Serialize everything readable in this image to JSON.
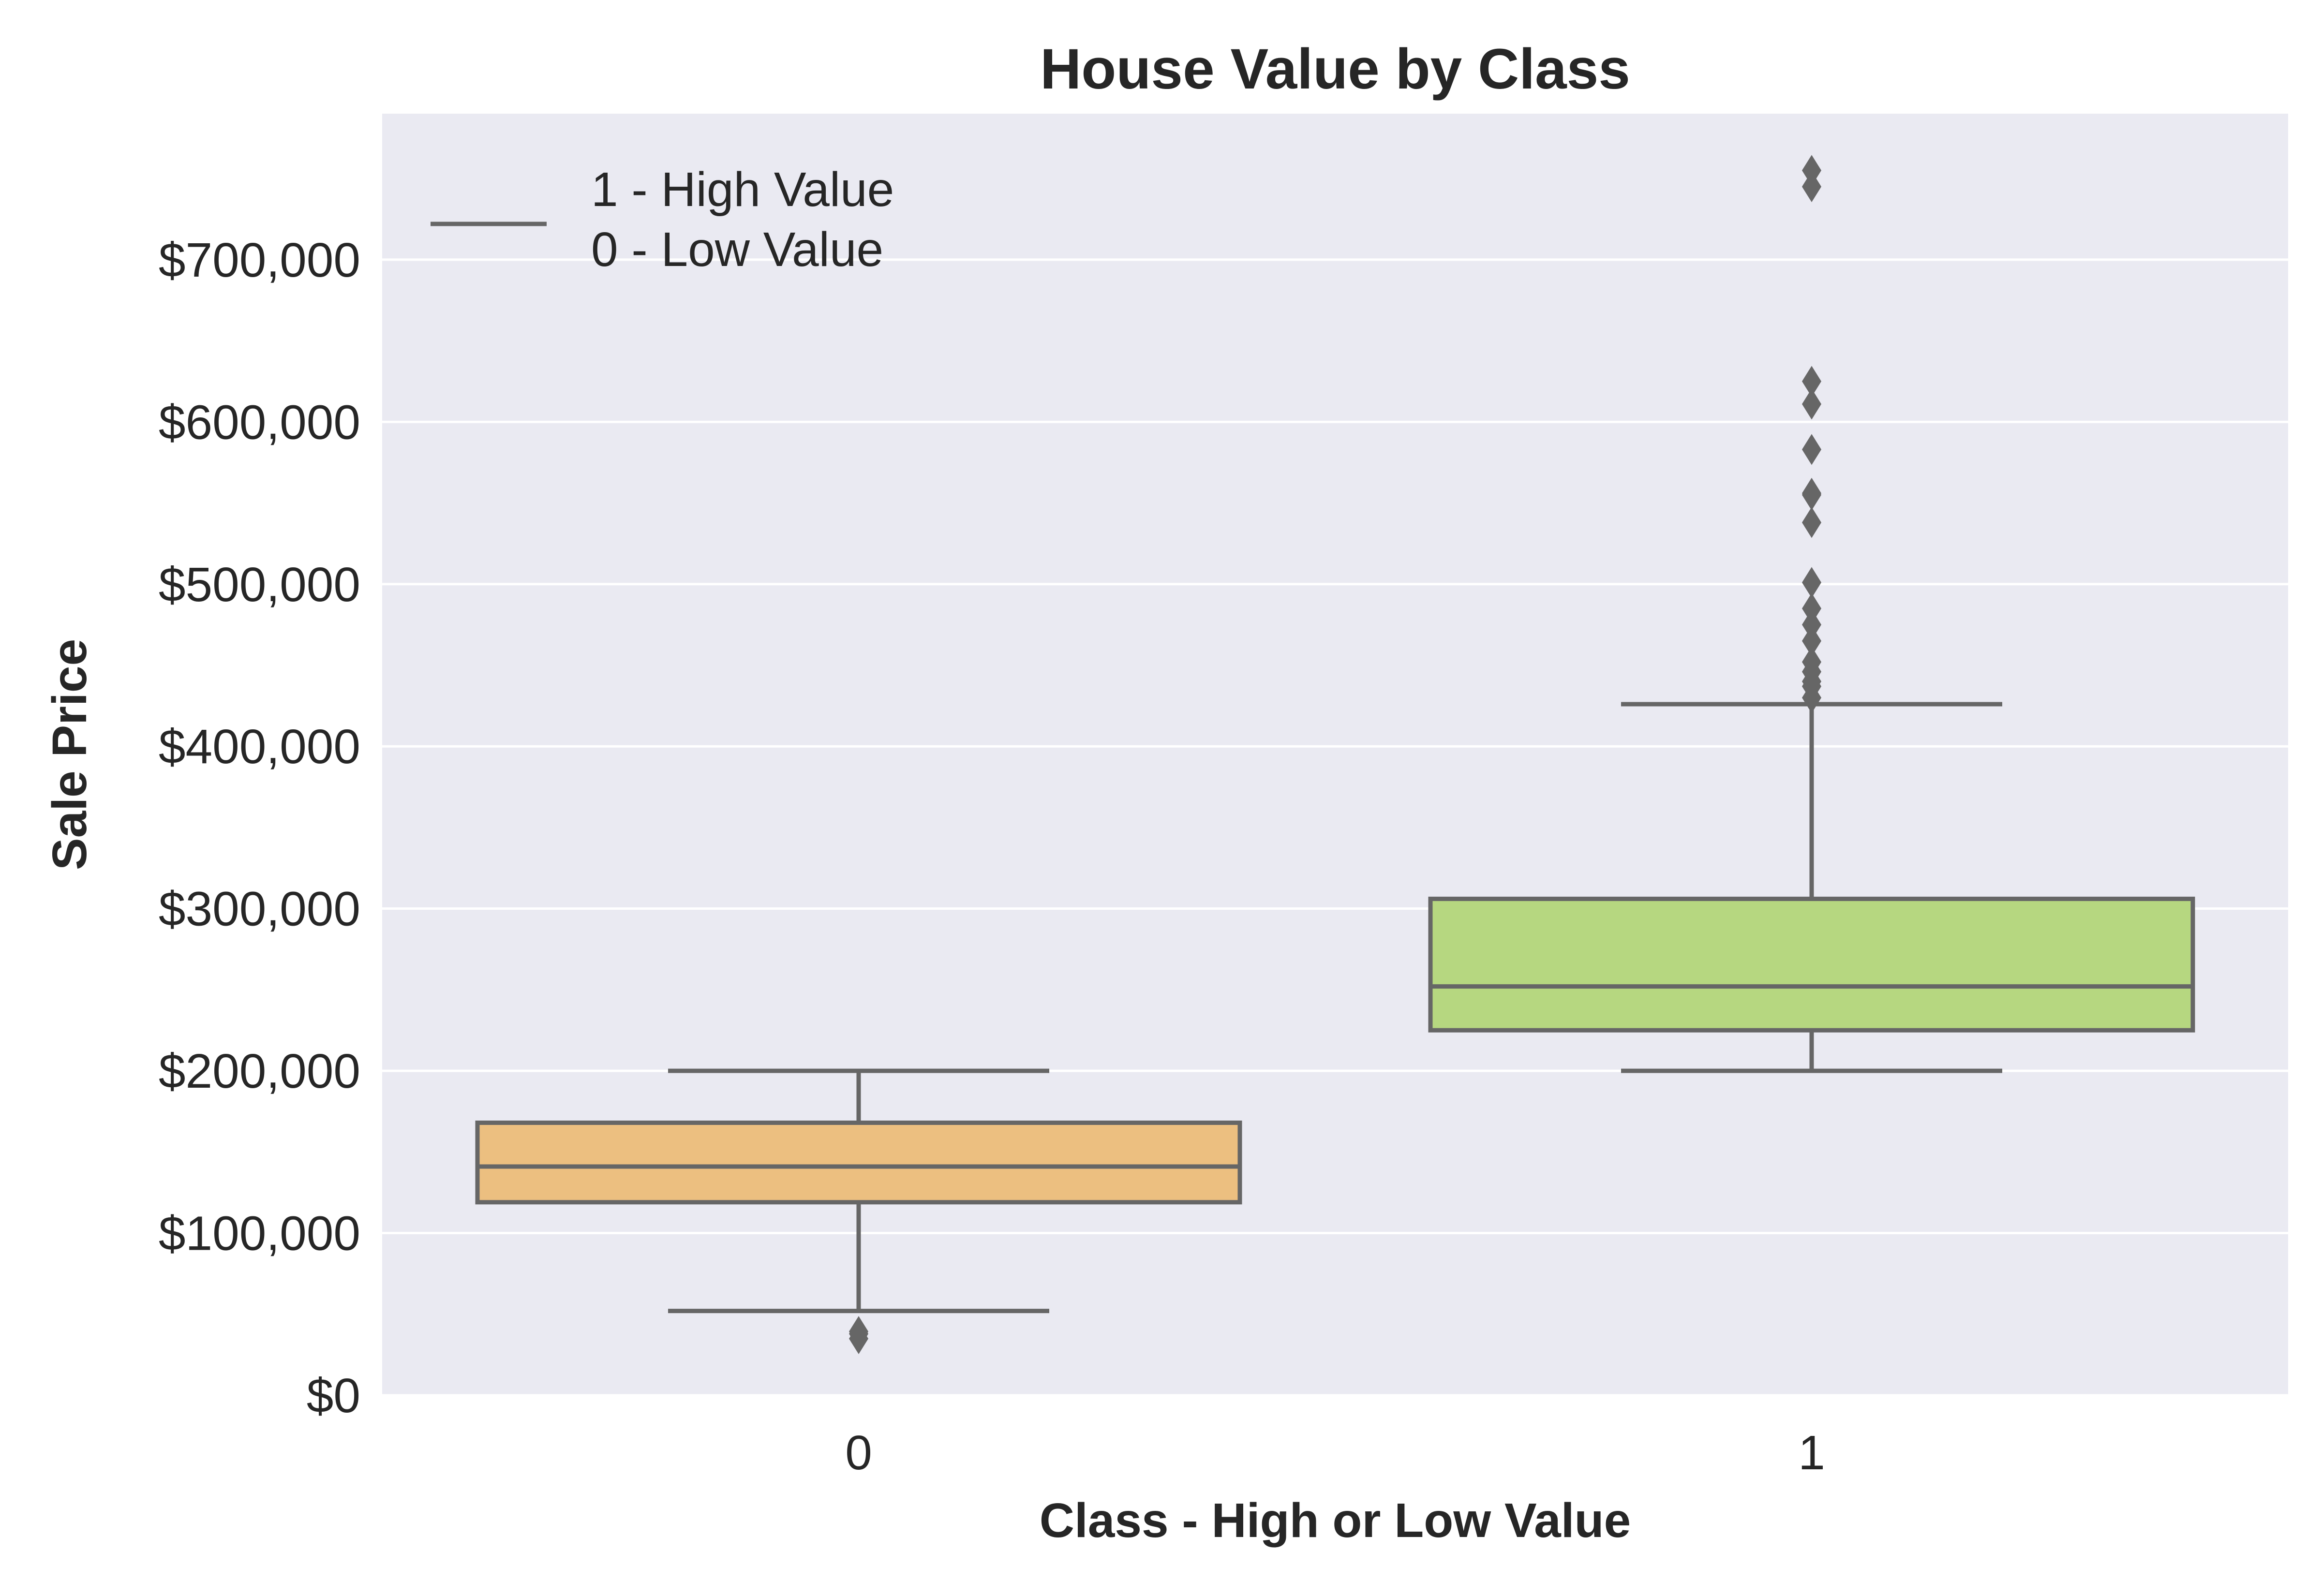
{
  "chart_data": {
    "type": "box",
    "title": "House Value by Class",
    "xlabel": "Class - High or Low Value",
    "ylabel": "Sale Price",
    "categories": [
      "0",
      "1"
    ],
    "ylim": [
      0,
      790000
    ],
    "yticks": [
      0,
      100000,
      200000,
      300000,
      400000,
      500000,
      600000,
      700000
    ],
    "ytick_labels": [
      "$0",
      "$100,000",
      "$200,000",
      "$300,000",
      "$400,000",
      "$500,000",
      "$600,000",
      "$700,000"
    ],
    "grid": true,
    "legend": {
      "placement": "top-left",
      "entries": [
        "1 - High Value",
        "0 - Low Value"
      ]
    },
    "colors": {
      "background": "#eaeaf2",
      "grid": "#ffffff",
      "line": "#666666",
      "class_0": "#ecbf80",
      "class_1": "#b6d780"
    },
    "boxes": [
      {
        "category": "0",
        "whisker_low": 52000,
        "q1": 119000,
        "median": 141000,
        "q3": 168000,
        "whisker_high": 200000,
        "outliers": [
          34900,
          37900,
          39300
        ]
      },
      {
        "category": "1",
        "whisker_low": 200000,
        "q1": 225000,
        "median": 252000,
        "q3": 306000,
        "whisker_high": 426000,
        "outliers": [
          430000,
          437000,
          440000,
          446000,
          452000,
          465000,
          475000,
          485000,
          501000,
          538000,
          555000,
          556000,
          583000,
          611000,
          625000,
          745000,
          755000
        ]
      }
    ]
  }
}
